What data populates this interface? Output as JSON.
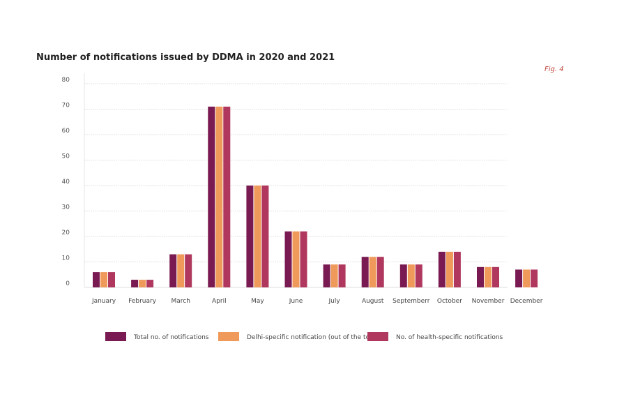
{
  "chart_data": {
    "type": "bar",
    "title": "Number of notifications issued by DDMA in 2020 and 2021",
    "annotation": "Fig. 4",
    "categories": [
      "January",
      "February",
      "March",
      "April",
      "May",
      "June",
      "July",
      "August",
      "Septemberr",
      "October",
      "November",
      "December"
    ],
    "series": [
      {
        "name": "Total no. of notifications",
        "color": "#7a1a52",
        "values": [
          6,
          3,
          13,
          71,
          40,
          22,
          9,
          12,
          9,
          14,
          8,
          7
        ]
      },
      {
        "name": "Delhi-specific notification  (out of the total)",
        "color": "#ef9a5a",
        "values": [
          6,
          3,
          13,
          71,
          40,
          22,
          9,
          12,
          9,
          14,
          8,
          7
        ]
      },
      {
        "name": "No. of health-specific notifications",
        "color": "#b0385e",
        "values": [
          6,
          3,
          13,
          71,
          40,
          22,
          9,
          12,
          9,
          14,
          8,
          7
        ]
      }
    ],
    "yticks": [
      0,
      10,
      20,
      30,
      40,
      50,
      60,
      70,
      80
    ],
    "ylim": [
      0,
      80
    ],
    "xlabel": "",
    "ylabel": "",
    "grid": true,
    "legend": "bottom"
  }
}
